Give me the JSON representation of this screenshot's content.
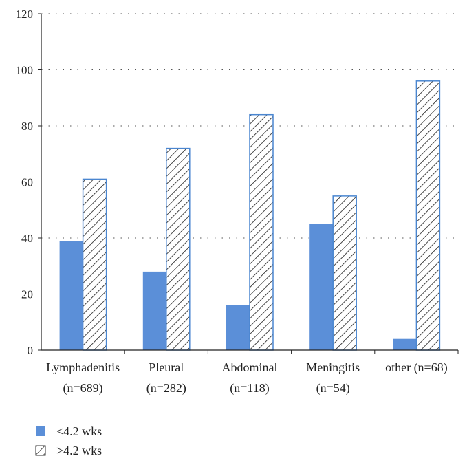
{
  "chart_data": {
    "type": "bar",
    "categories": [
      [
        "Lymphadenitis",
        "(n=689)"
      ],
      [
        "Pleural",
        "(n=282)"
      ],
      [
        "Abdominal",
        "(n=118)"
      ],
      [
        "Meningitis",
        "(n=54)"
      ],
      [
        "other (n=68)"
      ]
    ],
    "series": [
      {
        "name": "<4.2 wks",
        "values": [
          39,
          28,
          16,
          45,
          4
        ],
        "color": "#5B8FD8",
        "pattern": "solid"
      },
      {
        "name": ">4.2 wks",
        "values": [
          61,
          72,
          84,
          55,
          96
        ],
        "color": "#4A86D0",
        "pattern": "hatched"
      }
    ],
    "ylim": [
      0,
      120
    ],
    "yticks": [
      0,
      20,
      40,
      60,
      80,
      100,
      120
    ],
    "grid": "dotted-horizontal",
    "legend_position": "bottom-left"
  }
}
